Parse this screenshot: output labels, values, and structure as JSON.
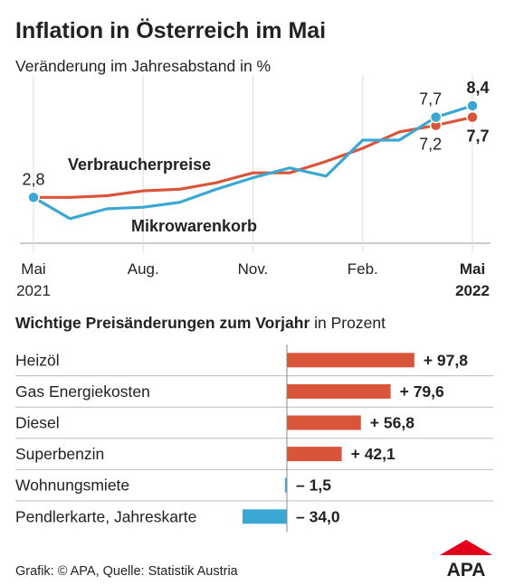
{
  "chart_data": [
    {
      "type": "line",
      "title": "Inflation in Österreich im Mai",
      "subtitle": "Veränderung im Jahresabstand in %",
      "categories": [
        "Mai 2021",
        null,
        null,
        "Aug.",
        null,
        null,
        "Nov.",
        null,
        null,
        "Feb.",
        null,
        null,
        "Mai 2022"
      ],
      "ylim": [
        0,
        10
      ],
      "series": [
        {
          "name": "Verbraucherpreise",
          "color": "#d9553a",
          "values": [
            2.8,
            2.8,
            2.9,
            3.2,
            3.3,
            3.7,
            4.3,
            4.3,
            5.0,
            5.8,
            6.8,
            7.2,
            7.7
          ],
          "value_labels": [
            "2,8",
            null,
            null,
            null,
            null,
            null,
            null,
            null,
            null,
            null,
            null,
            "7,2",
            "7,7"
          ]
        },
        {
          "name": "Mikrowarenkorb",
          "color": "#3aa8d2",
          "values": [
            2.8,
            1.5,
            2.1,
            2.2,
            2.5,
            3.3,
            4.0,
            4.6,
            4.1,
            6.3,
            6.3,
            7.7,
            8.4
          ],
          "value_labels": [
            null,
            null,
            null,
            null,
            null,
            null,
            null,
            null,
            null,
            null,
            null,
            "7,7",
            "8,4"
          ]
        }
      ]
    },
    {
      "type": "barh",
      "title": "Wichtige Preisänderungen zum Vorjahr",
      "subtitle": "in Prozent",
      "categories": [
        "Heizöl",
        "Gas Energiekosten",
        "Diesel",
        "Superbenzin",
        "Wohnungsmiete",
        "Pendlerkarte, Jahreskarte"
      ],
      "values": [
        97.8,
        79.6,
        56.8,
        42.1,
        -1.5,
        -34.0
      ],
      "value_labels": [
        "+ 97,8",
        "+ 79,6",
        "+ 56,8",
        "+ 42,1",
        "– 1,5",
        "– 34,0"
      ],
      "colors": {
        "positive": "#d9553a",
        "negative": "#3aa8d2"
      },
      "xlim": [
        -35,
        100
      ]
    }
  ],
  "source": "Grafik: © APA, Quelle: Statistik Austria",
  "logo": "APA"
}
